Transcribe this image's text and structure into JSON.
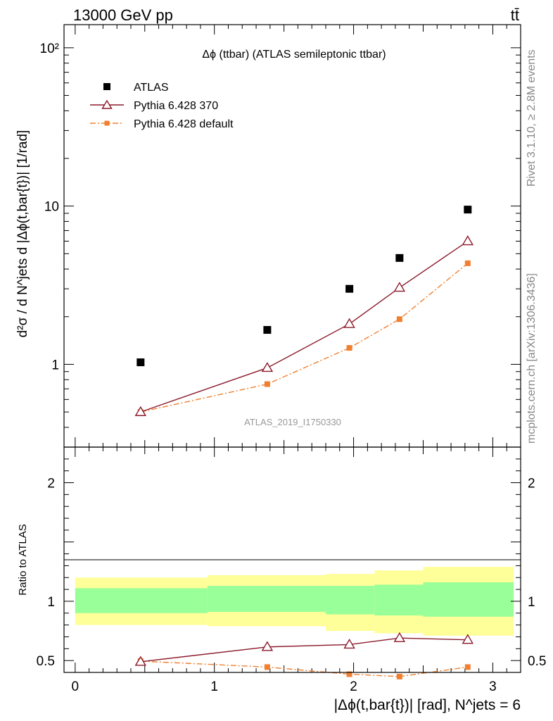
{
  "header": {
    "energy_label": "13000 GeV pp",
    "process_label": "tt̄"
  },
  "side": {
    "rivet_label": "Rivet 3.1.10, ≥ 2.8M events",
    "source_label": "mcplots.cern.ch [arXiv:1306.3436]"
  },
  "colors": {
    "atlas": "#000000",
    "pythia370": "#8b1a2b",
    "pythia_default": "#f08030",
    "band_inner": "#99ff99",
    "band_outer": "#ffff99"
  },
  "chart_data": [
    {
      "type": "scatter",
      "panel": "main",
      "title": "Δϕ (ttbar) (ATLAS semileptonic ttbar)",
      "watermark": "ATLAS_2019_I1750330",
      "ylabel": "d²σ / d N^jets d |Δϕ(t,bar{t})| [1/rad]",
      "yscale": "log",
      "ylim": [
        0.3,
        140
      ],
      "xlim": [
        -0.08,
        3.2
      ],
      "legend_position": "top-left",
      "yticks": [
        {
          "value": 1,
          "label": "1"
        },
        {
          "value": 10,
          "label": "10"
        },
        {
          "value": 100,
          "label": "10²"
        }
      ],
      "x": [
        0.47,
        1.38,
        1.97,
        2.33,
        2.82
      ],
      "series": [
        {
          "name": "ATLAS",
          "style": "square-marker",
          "values": [
            1.03,
            1.65,
            3.0,
            4.7,
            9.5
          ]
        },
        {
          "name": "Pythia 6.428 370",
          "style": "solid-triangle",
          "values": [
            0.5,
            0.95,
            1.8,
            3.05,
            6.0
          ]
        },
        {
          "name": "Pythia 6.428 default",
          "style": "dashdot-square",
          "values": [
            0.5,
            0.75,
            1.27,
            1.93,
            4.35
          ]
        }
      ]
    },
    {
      "type": "line",
      "panel": "ratio",
      "ylabel": "Ratio to ATLAS",
      "xlabel": "|Δϕ(t,bar{t})| [rad], N^jets = 6",
      "xlim": [
        -0.08,
        3.2
      ],
      "ylim": [
        0.4,
        2.3
      ],
      "xticks": [
        0,
        1,
        2,
        3
      ],
      "yticks": [
        {
          "value": 0.5,
          "label": "0.5"
        },
        {
          "value": 1,
          "label": "1"
        },
        {
          "value": 2,
          "label": "2"
        }
      ],
      "x": [
        0.47,
        1.38,
        1.97,
        2.33,
        2.82
      ],
      "series": [
        {
          "name": "Pythia 6.428 370",
          "style": "solid-triangle",
          "values": [
            0.49,
            0.615,
            0.635,
            0.69,
            0.675
          ]
        },
        {
          "name": "Pythia 6.428 default",
          "style": "dashdot-square",
          "values": [
            0.495,
            0.445,
            0.385,
            0.365,
            0.445
          ]
        }
      ],
      "uncertainty_bands": {
        "edges": [
          0,
          0.95,
          1.8,
          2.15,
          2.5,
          3.15
        ],
        "inner": [
          [
            0.9,
            1.11
          ],
          [
            0.91,
            1.13
          ],
          [
            0.89,
            1.13
          ],
          [
            0.88,
            1.14
          ],
          [
            0.87,
            1.16
          ]
        ],
        "outer": [
          [
            0.8,
            1.2
          ],
          [
            0.79,
            1.22
          ],
          [
            0.75,
            1.23
          ],
          [
            0.73,
            1.26
          ],
          [
            0.71,
            1.29
          ]
        ]
      }
    }
  ]
}
